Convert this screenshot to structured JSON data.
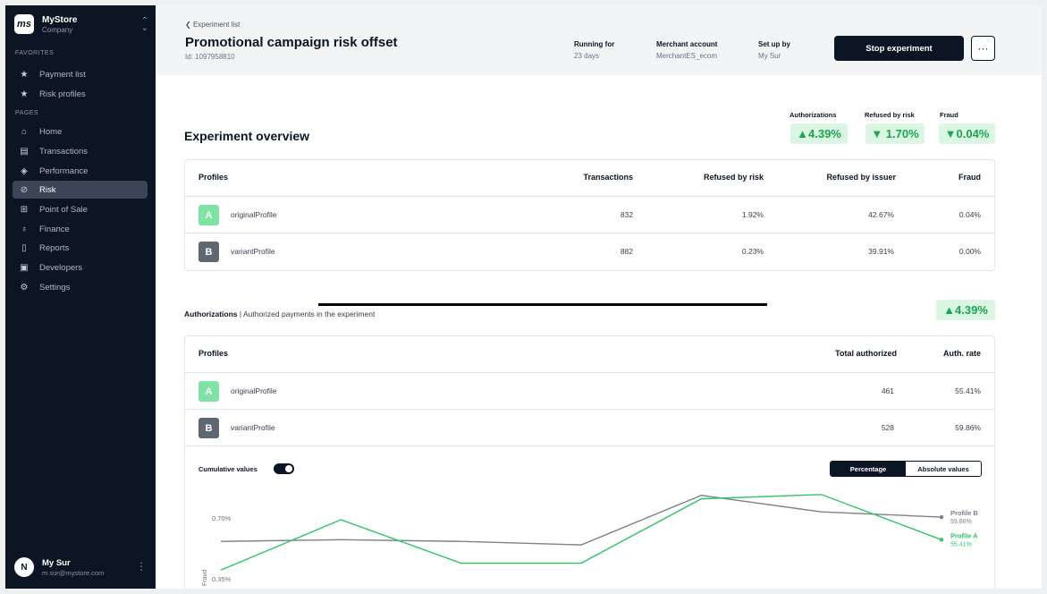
{
  "sidebar": {
    "brand": {
      "logo": "ms",
      "name": "MyStore",
      "sub": "Company"
    },
    "favorites_label": "FAVORITES",
    "favorites": [
      {
        "label": "Payment list",
        "icon": "star-icon"
      },
      {
        "label": "Risk profiles",
        "icon": "star-icon"
      }
    ],
    "pages_label": "PAGES",
    "pages": [
      {
        "label": "Home",
        "icon": "home-icon"
      },
      {
        "label": "Transactions",
        "icon": "table-icon"
      },
      {
        "label": "Performance",
        "icon": "diamond-icon"
      },
      {
        "label": "Risk",
        "icon": "shield-icon",
        "active": true
      },
      {
        "label": "Point of Sale",
        "icon": "store-icon"
      },
      {
        "label": "Finance",
        "icon": "finance-icon"
      },
      {
        "label": "Reports",
        "icon": "document-icon"
      },
      {
        "label": "Developers",
        "icon": "terminal-icon"
      },
      {
        "label": "Settings",
        "icon": "gear-icon"
      }
    ],
    "user": {
      "initial": "N",
      "name": "My Sur",
      "email": "m.sur@mystore.com"
    }
  },
  "header": {
    "back_label": "Experiment list",
    "title": "Promotional campaign risk offset",
    "id_label": "Id: 1097958810",
    "meta": [
      {
        "label": "Running for",
        "value": "23 days"
      },
      {
        "label": "Merchant account",
        "value": "MerchantES_ecom"
      },
      {
        "label": "Set up by",
        "value": "My Sur"
      }
    ],
    "stop_label": "Stop experiment",
    "more_label": "···"
  },
  "overview": {
    "title": "Experiment overview",
    "kpis": [
      {
        "label": "Authorizations",
        "value": "▲4.39%"
      },
      {
        "label": "Refused by risk",
        "value": "▼ 1.70%"
      },
      {
        "label": "Fraud",
        "value": "▼0.04%"
      }
    ],
    "columns": [
      "Profiles",
      "Transactions",
      "Refused by risk",
      "Refused by issuer",
      "Fraud"
    ],
    "rows": [
      {
        "badge": "A",
        "name": "originalProfile",
        "transactions": "832",
        "refused_risk": "1.92%",
        "refused_issuer": "42.67%",
        "fraud": "0.04%"
      },
      {
        "badge": "B",
        "name": "variantProfile",
        "transactions": "882",
        "refused_risk": "0.23%",
        "refused_issuer": "39.91%",
        "fraud": "0.00%"
      }
    ]
  },
  "authorizations": {
    "title": "Authorizations",
    "subtitle": " | Authorized payments in the experiment",
    "badge": "▲4.39%",
    "columns": [
      "Profiles",
      "Total authorized",
      "Auth. rate"
    ],
    "rows": [
      {
        "badge": "A",
        "name": "originalProfile",
        "total": "461",
        "rate": "55.41%"
      },
      {
        "badge": "B",
        "name": "variantProfile",
        "total": "528",
        "rate": "59.86%"
      }
    ],
    "cumulative_label": "Cumulative values",
    "seg_on": "Percentage",
    "seg_off": "Absolute values"
  },
  "chart_data": {
    "type": "line",
    "ylabel": "Fraud",
    "y_ticks": [
      {
        "value": 0.7,
        "label": "0.70%"
      },
      {
        "value": 0.35,
        "label": "0.35%"
      }
    ],
    "series": [
      {
        "name": "Profile B",
        "end_label": "59.86%",
        "color": "#7b818b",
        "values": [
          0.565,
          0.575,
          0.565,
          0.545,
          0.83,
          0.735,
          0.705
        ]
      },
      {
        "name": "Profile A",
        "end_label": "55.41%",
        "color": "#2fc466",
        "values": [
          0.4,
          0.69,
          0.44,
          0.44,
          0.81,
          0.835,
          0.575
        ]
      }
    ],
    "colors": {
      "profile_a": "#2fc466",
      "profile_b": "#7b818b"
    }
  }
}
